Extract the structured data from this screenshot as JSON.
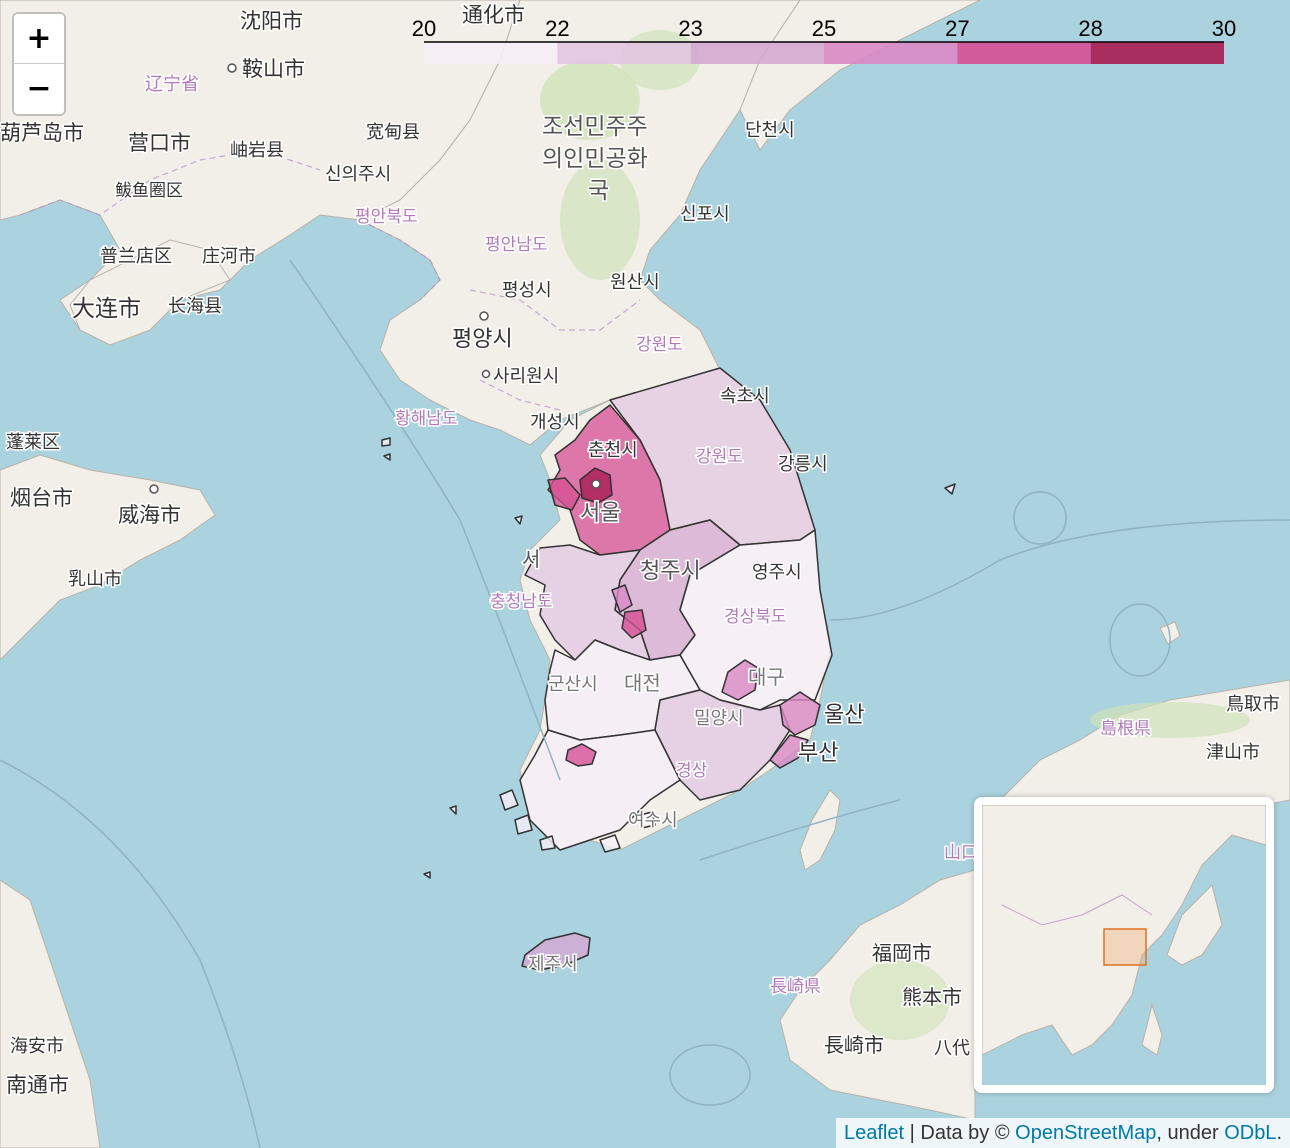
{
  "zoom": {
    "in_label": "+",
    "out_label": "−"
  },
  "legend": {
    "ticks": [
      "20",
      "22",
      "23",
      "25",
      "27",
      "28",
      "30"
    ],
    "colors": [
      "#f6eff7",
      "#e2c6e0",
      "#d4a8d2",
      "#d988c4",
      "#d64f93",
      "#a81c52"
    ]
  },
  "attribution": {
    "leaflet": "Leaflet",
    "sep": " | Data by © ",
    "osm": "OpenStreetMap",
    "under": ", under ",
    "odbl": "ODbL",
    "end": "."
  },
  "labels": {
    "shenyang": "沈阳市",
    "tonghua": "通化市",
    "anshan": "鞍山市",
    "liaoning": "辽宁省",
    "yingkou": "营口市",
    "xiuyan": "岫岩县",
    "kuandian": "宽甸县",
    "huludao": "葫芦岛市",
    "bayuquan": "鲅鱼圈区",
    "pulandian": "普兰店区",
    "zhuanghe": "庄河市",
    "dalian": "大连市",
    "changhai": "长海县",
    "penglai": "蓬莱区",
    "yantai": "烟台市",
    "weihai": "威海市",
    "rushan": "乳山市",
    "nantong": "南通市",
    "haian": "海安市",
    "dprk1": "조선민주주",
    "dprk2": "의인민공화",
    "dprk3": "국",
    "sinuiju": "신의주시",
    "pyonganbuk": "평안북도",
    "pyongannam": "평안남도",
    "pyongsong": "평성시",
    "pyongyang": "평양시",
    "sariwon": "사리원시",
    "hwanghae": "황해남도",
    "kaesong": "개성시",
    "wonsan": "원산시",
    "gangwon_n": "강원도",
    "tanchon": "단천시",
    "sinpo": "신포시",
    "sokcho": "속초시",
    "chuncheon": "춘천시",
    "gangwon_s": "강원도",
    "gangneung": "강릉시",
    "seoul": "서울",
    "chungju": "청주시",
    "chungnam": "충청남도",
    "seo": "서",
    "yeongju": "영주시",
    "gyeongbuk": "경상북도",
    "daejeon": "대전",
    "gunsan": "군산시",
    "daegu": "대구",
    "ulsan": "울산",
    "busan": "부산",
    "miryang": "밀양시",
    "gyeongsang": "경상",
    "yeosu": "여수시",
    "jeju": "제주시",
    "tottori": "鳥取市",
    "shimane": "島根県",
    "tsuyama": "津山市",
    "fukuoka": "福岡市",
    "kumamoto": "熊本市",
    "nagasaki_p": "長崎県",
    "nagasaki": "長崎市",
    "yatsushiro": "八代",
    "yamaguchi": "山口"
  }
}
